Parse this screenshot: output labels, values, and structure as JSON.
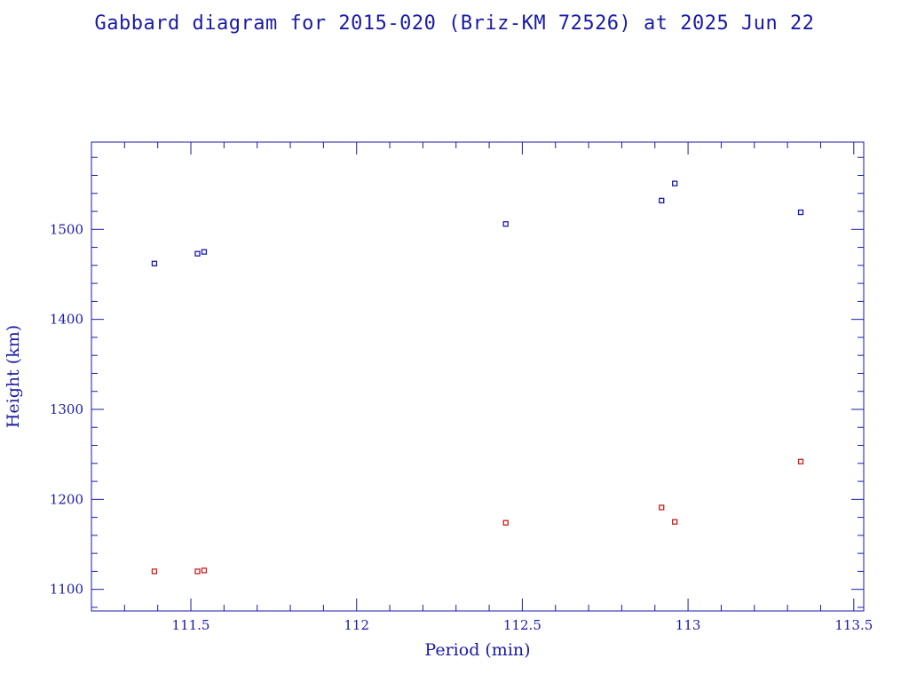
{
  "chart_data": {
    "type": "scatter",
    "title": "Gabbard diagram for 2015-020 (Briz-KM 72526) at 2025 Jun 22",
    "xlabel": "Period (min)",
    "ylabel": "Height (km)",
    "xlim": [
      111.2,
      113.53
    ],
    "ylim": [
      1076,
      1597
    ],
    "xticks": [
      111.5,
      112,
      112.5,
      113,
      113.5
    ],
    "xtick_labels": [
      "111.5",
      "112",
      "112.5",
      "113",
      "113.5"
    ],
    "yticks": [
      1100,
      1200,
      1300,
      1400,
      1500
    ],
    "ytick_labels": [
      "1100",
      "1200",
      "1300",
      "1400",
      "1500"
    ],
    "grid": false,
    "series": [
      {
        "color": "#1a1aa6",
        "points": [
          {
            "x": 111.39,
            "y": 1462
          },
          {
            "x": 111.52,
            "y": 1473
          },
          {
            "x": 111.54,
            "y": 1475
          },
          {
            "x": 112.45,
            "y": 1506
          },
          {
            "x": 112.92,
            "y": 1532
          },
          {
            "x": 112.96,
            "y": 1551
          },
          {
            "x": 113.34,
            "y": 1519
          }
        ]
      },
      {
        "color": "#c8201e",
        "points": [
          {
            "x": 111.39,
            "y": 1120
          },
          {
            "x": 111.52,
            "y": 1120
          },
          {
            "x": 111.54,
            "y": 1121
          },
          {
            "x": 112.45,
            "y": 1174
          },
          {
            "x": 112.92,
            "y": 1191
          },
          {
            "x": 112.96,
            "y": 1175
          },
          {
            "x": 113.34,
            "y": 1242
          }
        ]
      }
    ]
  }
}
